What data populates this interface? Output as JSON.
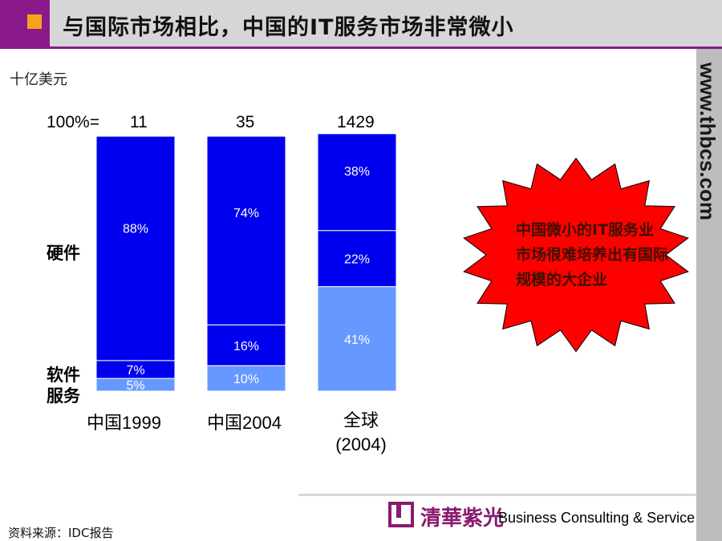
{
  "header": {
    "title": "与国际市场相比，中国的IT服务市场非常微小"
  },
  "sidebar": {
    "website": "www.thbcs.com"
  },
  "unit_label": "十亿美元",
  "callout": {
    "text": "中国微小的IT服务业市场很难培养出有国际规模的大企业",
    "color": "#ff0000"
  },
  "footer": {
    "company": "Business Consulting & Service",
    "seal": "清華紫光",
    "source": "资料来源：IDC报告"
  },
  "colors": {
    "hardware": "#0000ee",
    "software": "#0000ee",
    "services": "#6699ff",
    "accent": "#8a1a8a",
    "bullet": "#f5a31a"
  },
  "chart_data": {
    "type": "bar",
    "stacked": true,
    "normalized": true,
    "total_prefix": "100%=",
    "categories": [
      "中国1999",
      "中国2004",
      "全球\n(2004)"
    ],
    "totals": [
      "11",
      "35",
      "1429"
    ],
    "series": [
      {
        "name": "服务",
        "values": [
          5,
          10,
          41
        ]
      },
      {
        "name": "软件",
        "values": [
          7,
          16,
          22
        ]
      },
      {
        "name": "硬件",
        "values": [
          88,
          74,
          38
        ]
      }
    ],
    "value_labels": [
      [
        "5%",
        "10%",
        "41%"
      ],
      [
        "7%",
        "16%",
        "22%"
      ],
      [
        "88%",
        "74%",
        "38%"
      ]
    ]
  }
}
